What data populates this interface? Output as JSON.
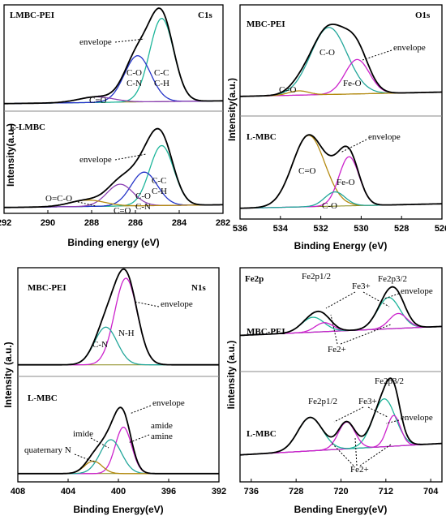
{
  "colors": {
    "envelope": "#000000",
    "purple": "#8b3fb3",
    "blue": "#2434c8",
    "cyan": "#1db59a",
    "gold": "#b48a10",
    "magenta": "#cc22cc",
    "teal": "#22a69a",
    "background_line": "#8a8a1a"
  },
  "chart_data": [
    {
      "panel": "C1s",
      "type": "line",
      "title": "C1s",
      "xlabel": "Binding energy (eV)",
      "ylabel": "Intensity(a.u.)",
      "xlim": [
        292,
        282
      ],
      "xticks": [
        "292",
        "290",
        "288",
        "286",
        "284",
        "282"
      ],
      "subpanels": [
        {
          "sample": "LMBC-PEI",
          "peaks": [
            {
              "name": "C-C C-H",
              "center": 284.8,
              "height": 0.9,
              "width": 0.55,
              "color": "cyan"
            },
            {
              "name": "C-O C-N",
              "center": 285.9,
              "height": 0.5,
              "width": 0.6,
              "color": "blue"
            },
            {
              "name": "C=O",
              "center": 287.8,
              "height": 0.06,
              "width": 0.8,
              "color": "purple"
            }
          ],
          "annotations": [
            "envelope",
            "C-O",
            "C-N",
            "C-C",
            "C-H",
            "C=O"
          ]
        },
        {
          "sample": "L-LMBC",
          "peaks": [
            {
              "name": "C-C C-H",
              "center": 284.8,
              "height": 0.66,
              "width": 0.55,
              "color": "cyan"
            },
            {
              "name": "C-O C-N",
              "center": 285.6,
              "height": 0.37,
              "width": 0.6,
              "color": "blue"
            },
            {
              "name": "C=O",
              "center": 286.7,
              "height": 0.24,
              "width": 0.6,
              "color": "purple"
            },
            {
              "name": "O=C-O",
              "center": 288.2,
              "height": 0.07,
              "width": 0.8,
              "color": "gold"
            }
          ],
          "annotations": [
            "envelope",
            "O=C-O",
            "C=O",
            "C-O",
            "C-N",
            "C-C",
            "C-H"
          ]
        }
      ]
    },
    {
      "panel": "O1s",
      "type": "line",
      "title": "O1s",
      "xlabel": "Binding Energy (eV)",
      "ylabel": "Intensity(a.u.)",
      "xlim": [
        536,
        526
      ],
      "xticks": [
        "536",
        "534",
        "532",
        "530",
        "528",
        "526"
      ],
      "subpanels": [
        {
          "sample": "MBC-PEI",
          "peaks": [
            {
              "name": "C-O",
              "center": 531.6,
              "height": 0.78,
              "width": 0.9,
              "color": "teal"
            },
            {
              "name": "Fe-O",
              "center": 530.2,
              "height": 0.4,
              "width": 0.6,
              "color": "magenta"
            },
            {
              "name": "C=O",
              "center": 533.1,
              "height": 0.05,
              "width": 0.5,
              "color": "gold"
            }
          ],
          "annotations": [
            "C-O",
            "envelope",
            "Fe-O",
            "C=O"
          ]
        },
        {
          "sample": "L-MBC",
          "peaks": [
            {
              "name": "C=O",
              "center": 532.6,
              "height": 0.8,
              "width": 0.8,
              "color": "gold"
            },
            {
              "name": "Fe-O",
              "center": 530.6,
              "height": 0.55,
              "width": 0.5,
              "color": "magenta"
            },
            {
              "name": "C-O",
              "center": 531.3,
              "height": 0.16,
              "width": 0.5,
              "color": "teal"
            }
          ],
          "annotations": [
            "envelope",
            "C=O",
            "Fe-O",
            "C-O"
          ]
        }
      ]
    },
    {
      "panel": "N1s",
      "type": "line",
      "title": "N1s",
      "xlabel": "Binding Energy(eV)",
      "ylabel": "Intensity (a.u.)",
      "xlim": [
        408,
        392
      ],
      "xticks": [
        "408",
        "404",
        "400",
        "396",
        "392"
      ],
      "subpanels": [
        {
          "sample": "MBC-PEI",
          "peaks": [
            {
              "name": "N-H",
              "center": 399.4,
              "height": 0.92,
              "width": 0.9,
              "color": "magenta"
            },
            {
              "name": "C-N",
              "center": 401.0,
              "height": 0.4,
              "width": 0.9,
              "color": "teal"
            }
          ],
          "annotations": [
            "envelope",
            "C-N",
            "N-H"
          ]
        },
        {
          "sample": "L-MBC",
          "peaks": [
            {
              "name": "amide amine",
              "center": 399.6,
              "height": 0.52,
              "width": 0.65,
              "color": "magenta"
            },
            {
              "name": "imide",
              "center": 400.6,
              "height": 0.38,
              "width": 0.85,
              "color": "teal"
            },
            {
              "name": "quaternary N",
              "center": 402.0,
              "height": 0.14,
              "width": 0.7,
              "color": "gold"
            }
          ],
          "annotations": [
            "envelope",
            "imide",
            "amide",
            "amine",
            "quaternary N"
          ]
        }
      ]
    },
    {
      "panel": "Fe2p",
      "type": "line",
      "title": "Fe2p",
      "xlabel": "Bending Energy(eV)",
      "ylabel": "Iintensity (a.u.)",
      "xlim": [
        738,
        702
      ],
      "xticks": [
        "736",
        "728",
        "720",
        "712",
        "704"
      ],
      "subpanels": [
        {
          "sample": "MBC-PEI",
          "peaks": [
            {
              "name": "Fe3+ 2p3/2",
              "center": 711.5,
              "height": 0.42,
              "width": 2.0,
              "color": "cyan"
            },
            {
              "name": "Fe2+ 2p3/2",
              "center": 709.8,
              "height": 0.2,
              "width": 1.6,
              "color": "magenta"
            },
            {
              "name": "Fe3+ 2p1/2",
              "center": 725.0,
              "height": 0.2,
              "width": 2.0,
              "color": "cyan"
            },
            {
              "name": "Fe2+ 2p1/2",
              "center": 723.0,
              "height": 0.12,
              "width": 1.6,
              "color": "magenta"
            }
          ],
          "annotations": [
            "Fe2p1/2",
            "Fe3+",
            "Fe2p3/2",
            "envelope",
            "Fe2+"
          ]
        },
        {
          "sample": "L-MBC",
          "peaks": [
            {
              "name": "Fe3+ 2p3/2",
              "center": 712.3,
              "height": 0.5,
              "width": 2.0,
              "color": "cyan"
            },
            {
              "name": "Fe2+ 2p3/2",
              "center": 710.6,
              "height": 0.32,
              "width": 1.2,
              "color": "magenta"
            },
            {
              "name": "Fe3+ 2p1/2",
              "center": 725.5,
              "height": 0.35,
              "width": 2.2,
              "color": "cyan"
            },
            {
              "name": "Fe2+ 2p1/2",
              "center": 719.0,
              "height": 0.28,
              "width": 1.5,
              "color": "magenta"
            }
          ],
          "annotations": [
            "Fe2p1/2",
            "Fe3+",
            "Fe2p3/2",
            "envelope",
            "Fe2+"
          ]
        }
      ]
    }
  ]
}
